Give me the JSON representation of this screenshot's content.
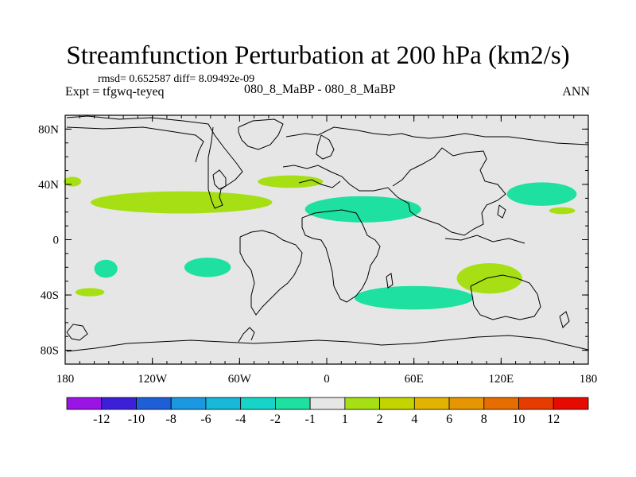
{
  "chart_data": {
    "type": "contour-map",
    "title": "Streamfunction Perturbation at 200 hPa (km2/s)",
    "stats_text": "rmsd= 0.652587 diff= 8.09492e-09",
    "experiment_label": "Expt = tfgwq-teyeq",
    "case_label": "080_8_MaBP - 080_8_MaBP",
    "season_label": "ANN",
    "xlim": [
      -180,
      180
    ],
    "ylim": [
      -90,
      90
    ],
    "x_ticks": [
      {
        "value": -180,
        "label": "180"
      },
      {
        "value": -120,
        "label": "120W"
      },
      {
        "value": -60,
        "label": "60W"
      },
      {
        "value": 0,
        "label": "0"
      },
      {
        "value": 60,
        "label": "60E"
      },
      {
        "value": 120,
        "label": "120E"
      },
      {
        "value": 180,
        "label": "180"
      }
    ],
    "y_ticks": [
      {
        "value": 80,
        "label": "80N"
      },
      {
        "value": 40,
        "label": "40N"
      },
      {
        "value": 0,
        "label": "0"
      },
      {
        "value": -40,
        "label": "40S"
      },
      {
        "value": -80,
        "label": "80S"
      }
    ],
    "background_band": "-1 to 1",
    "colorbar": {
      "colors": [
        "#9a14e6",
        "#3c1fd8",
        "#1e5fd8",
        "#1a98e0",
        "#17b8d8",
        "#17d4c8",
        "#1ee0a0",
        "#e6e6e6",
        "#a6e014",
        "#c4d400",
        "#e0b400",
        "#e69600",
        "#e66e00",
        "#e63c00",
        "#e60a00"
      ],
      "labels": [
        "-12",
        "-10",
        "-8",
        "-6",
        "-4",
        "-2",
        "-1",
        "1",
        "2",
        "4",
        "6",
        "8",
        "10",
        "12"
      ]
    },
    "anomaly_regions": [
      {
        "sign": "positive",
        "band": "1 to 2",
        "lon": -100,
        "lat": 27,
        "lon_span": 125,
        "lat_span": 16
      },
      {
        "sign": "positive",
        "band": "1 to 2",
        "lon": -25,
        "lat": 42,
        "lon_span": 45,
        "lat_span": 9
      },
      {
        "sign": "positive",
        "band": "1 to 2",
        "lon": -175,
        "lat": 42,
        "lon_span": 12,
        "lat_span": 7
      },
      {
        "sign": "positive",
        "band": "1 to 2",
        "lon": -163,
        "lat": -38,
        "lon_span": 20,
        "lat_span": 6
      },
      {
        "sign": "positive",
        "band": "1 to 2",
        "lon": 112,
        "lat": -28,
        "lon_span": 45,
        "lat_span": 22
      },
      {
        "sign": "positive",
        "band": "1 to 2",
        "lon": 162,
        "lat": 21,
        "lon_span": 18,
        "lat_span": 5
      },
      {
        "sign": "negative",
        "band": "-2 to -1",
        "lon": 25,
        "lat": 22,
        "lon_span": 80,
        "lat_span": 19
      },
      {
        "sign": "negative",
        "band": "-2 to -1",
        "lon": 60,
        "lat": -42,
        "lon_span": 82,
        "lat_span": 17
      },
      {
        "sign": "negative",
        "band": "-2 to -1",
        "lon": 148,
        "lat": 33,
        "lon_span": 48,
        "lat_span": 17
      },
      {
        "sign": "negative",
        "band": "-2 to -1",
        "lon": -82,
        "lat": -20,
        "lon_span": 32,
        "lat_span": 14
      },
      {
        "sign": "negative",
        "band": "-2 to -1",
        "lon": -152,
        "lat": -21,
        "lon_span": 16,
        "lat_span": 13
      }
    ]
  }
}
